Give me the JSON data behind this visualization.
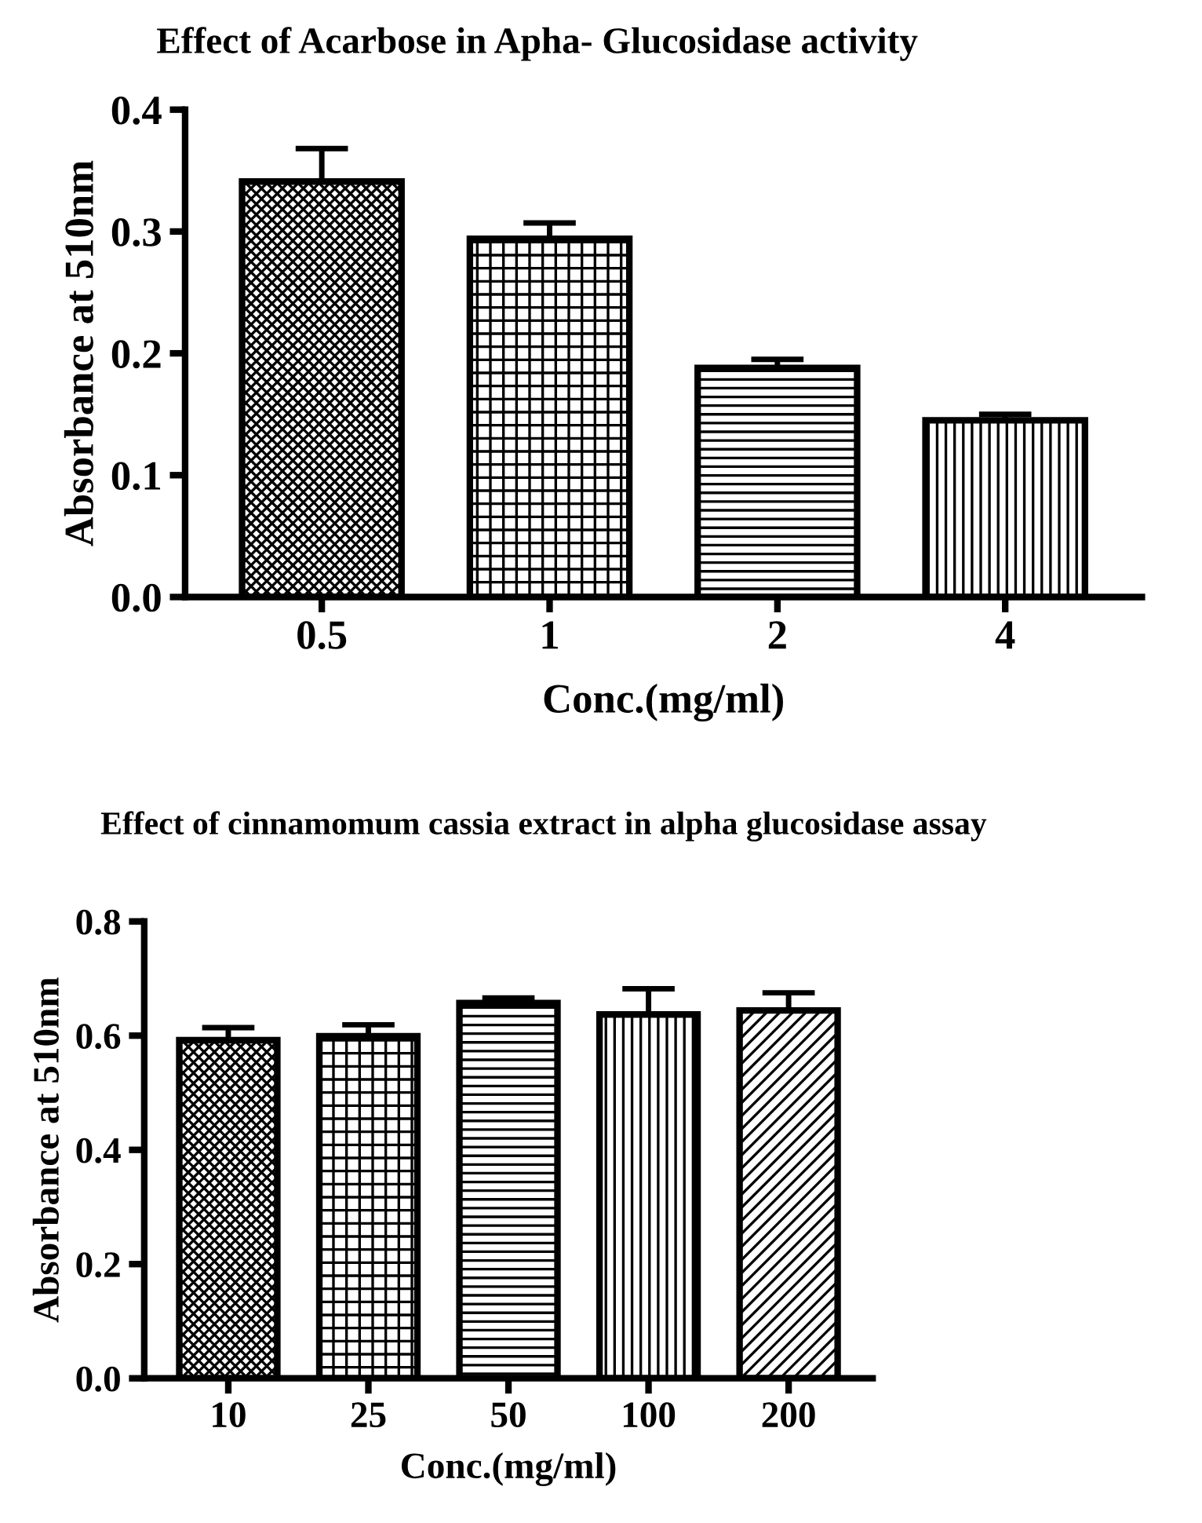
{
  "chart_data": [
    {
      "type": "bar",
      "title": "Effect of Acarbose in Apha- Glucosidase activity",
      "xlabel": "Conc.(mg/ml)",
      "ylabel": "Absorbance at 510nm",
      "categories": [
        "0.5",
        "1",
        "2",
        "4"
      ],
      "color": "#000000",
      "values": [
        0.341,
        0.294,
        0.188,
        0.145
      ],
      "errors": [
        0.027,
        0.013,
        0.007,
        0.005
      ],
      "ylim": [
        0,
        0.4
      ],
      "yticks": [
        {
          "value": 0,
          "label": "0.0"
        },
        0.1,
        0.2,
        0.3,
        0.4
      ],
      "grid": false,
      "legend": false
    },
    {
      "type": "bar",
      "title": "Effect of cinnamomum cassia extract in alpha glucosidase assay",
      "xlabel": "Conc.(mg/ml)",
      "ylabel": "Absorbance at 510nm",
      "categories": [
        "10",
        "25",
        "50",
        "100",
        "200"
      ],
      "color": "#000000",
      "values": [
        0.592,
        0.599,
        0.657,
        0.637,
        0.644
      ],
      "errors": [
        0.022,
        0.02,
        0.009,
        0.045,
        0.031
      ],
      "ylim": [
        0,
        0.8
      ],
      "yticks": [
        {
          "value": 0,
          "label": "0.0"
        },
        0.2,
        0.4,
        0.6,
        0.8
      ],
      "grid": false,
      "legend": false
    }
  ]
}
